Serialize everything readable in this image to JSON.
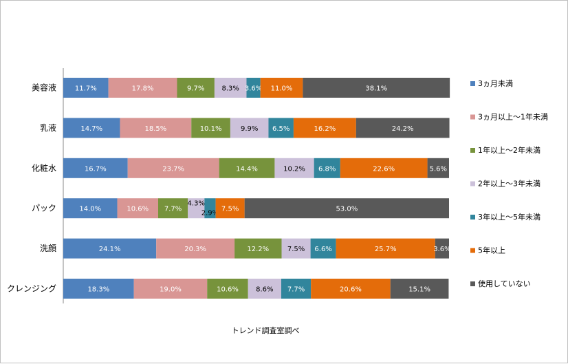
{
  "chart_data": {
    "type": "bar",
    "orientation": "horizontal",
    "stacked": true,
    "categories": [
      "美容液",
      "乳液",
      "化粧水",
      "パック",
      "洗顔",
      "クレンジング"
    ],
    "series": [
      {
        "name": "3ヵ月未満",
        "color": "#4f81bd",
        "values": [
          11.7,
          14.7,
          16.7,
          14.0,
          24.1,
          18.3
        ],
        "labels": [
          "11.7%",
          "14.7%",
          "16.7%",
          "14.0%",
          "24.1%",
          "18.3%"
        ]
      },
      {
        "name": "3ヵ月以上～1年未満",
        "color": "#d99694",
        "values": [
          17.8,
          18.5,
          23.7,
          10.6,
          20.3,
          19.0
        ],
        "labels": [
          "17.8%",
          "18.5%",
          "23.7%",
          "10.6%",
          "20.3%",
          "19.0%"
        ]
      },
      {
        "name": "1年以上～2年未満",
        "color": "#77933c",
        "values": [
          9.7,
          10.1,
          14.4,
          7.7,
          12.2,
          10.6
        ],
        "labels": [
          "9.7%",
          "10.1%",
          "14.4%",
          "7.7%",
          "12.2%",
          "10.6%"
        ]
      },
      {
        "name": "2年以上～3年未満",
        "color": "#ccc1da",
        "values": [
          8.3,
          9.9,
          10.2,
          4.3,
          7.5,
          8.6
        ],
        "labels": [
          "8.3%",
          "9.9%",
          "10.2%",
          "4.3%",
          "7.5%",
          "8.6%"
        ]
      },
      {
        "name": "3年以上～5年未満",
        "color": "#31859c",
        "values": [
          3.6,
          6.5,
          6.8,
          2.9,
          6.6,
          7.7
        ],
        "labels": [
          "3.6%",
          "6.5%",
          "6.8%",
          "2.9%",
          "6.6%",
          "7.7%"
        ]
      },
      {
        "name": "5年以上",
        "color": "#e46c0a",
        "values": [
          11.0,
          16.2,
          22.6,
          7.5,
          25.7,
          20.6
        ],
        "labels": [
          "11.0%",
          "16.2%",
          "22.6%",
          "7.5%",
          "25.7%",
          "20.6%"
        ]
      },
      {
        "name": "使用していない",
        "color": "#595959",
        "values": [
          38.1,
          24.2,
          5.6,
          53.0,
          3.6,
          15.1
        ],
        "labels": [
          "38.1%",
          "24.2%",
          "5.6%",
          "53.0%",
          "3.6%",
          "15.1%"
        ]
      }
    ],
    "xlim": [
      0,
      100
    ],
    "grid": false,
    "legend_position": "right"
  },
  "footnote": "トレンド調査室調べ"
}
